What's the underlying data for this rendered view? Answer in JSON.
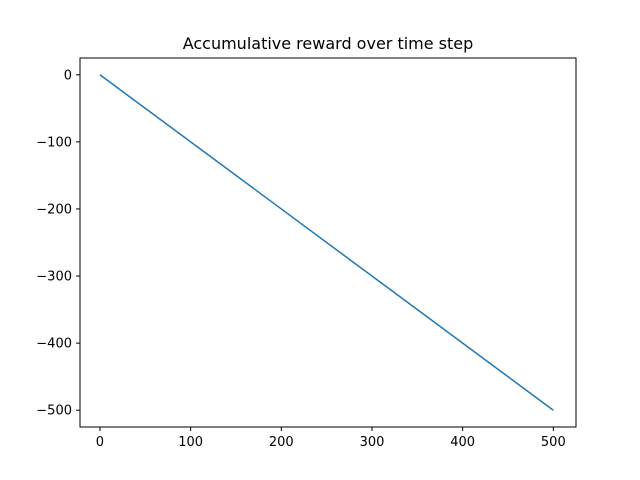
{
  "chart_data": {
    "type": "line",
    "title": "Accumulative reward over time step",
    "xlabel": "",
    "ylabel": "",
    "xlim": [
      -22,
      525
    ],
    "ylim": [
      -525,
      25
    ],
    "xticks": [
      0,
      100,
      200,
      300,
      400,
      500
    ],
    "xtick_labels": [
      "0",
      "100",
      "200",
      "300",
      "400",
      "500"
    ],
    "yticks": [
      0,
      -100,
      -200,
      -300,
      -400,
      -500
    ],
    "ytick_labels": [
      "0",
      "−100",
      "−200",
      "−300",
      "−400",
      "−500"
    ],
    "grid": false,
    "series": [
      {
        "color": "#1f77b4",
        "x": [
          0,
          500
        ],
        "y": [
          0,
          -500
        ]
      }
    ]
  }
}
